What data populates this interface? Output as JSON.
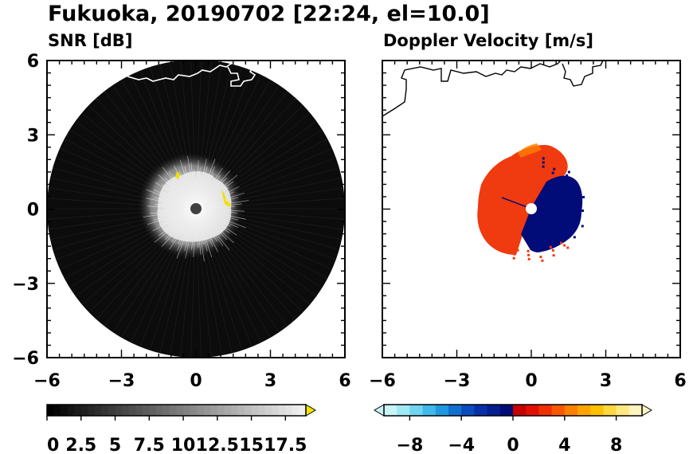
{
  "title": "Fukuoka, 20190702 [22:24, el=10.0]",
  "chart_data": [
    {
      "type": "heatmap",
      "subtitle": "SNR [dB]",
      "xlim": [
        -6,
        6
      ],
      "ylim": [
        -6,
        6
      ],
      "x_ticks": [
        "−6",
        "−3",
        "0",
        "3",
        "6"
      ],
      "y_ticks": [
        "6",
        "3",
        "0",
        "−3",
        "−6"
      ],
      "colorbar": {
        "range": [
          0,
          19
        ],
        "ticks": [
          "0",
          "2.5",
          "5",
          "7.5",
          "10",
          "12.5",
          "15",
          "17.5"
        ],
        "tick_values": [
          0,
          2.5,
          5,
          7.5,
          10,
          12.5,
          15,
          17.5
        ],
        "color_low": "#000000",
        "color_high": "#f0f0f0",
        "over_color": "#f5e400",
        "extend": "max"
      }
    },
    {
      "type": "heatmap",
      "subtitle": "Doppler Velocity [m/s]",
      "xlim": [
        -6,
        6
      ],
      "ylim": [
        -6,
        6
      ],
      "x_ticks": [
        "−6",
        "−3",
        "0",
        "3",
        "6"
      ],
      "colorbar": {
        "range": [
          -10,
          10
        ],
        "ticks": [
          "−8",
          "−4",
          "0",
          "4",
          "8"
        ],
        "tick_values": [
          -8,
          -4,
          0,
          4,
          8
        ],
        "colors_negative": [
          "#c8f4f8",
          "#a0e8f4",
          "#70d4f0",
          "#40b8ea",
          "#2098e0",
          "#1070d0",
          "#0a4cc0",
          "#0630a8",
          "#041e90",
          "#020c78"
        ],
        "colors_positive": [
          "#c80000",
          "#e01000",
          "#f03000",
          "#f85800",
          "#fc8000",
          "#ffa400",
          "#ffc000",
          "#ffd840",
          "#ffe880",
          "#fff4c0"
        ],
        "extend": "both"
      }
    }
  ]
}
